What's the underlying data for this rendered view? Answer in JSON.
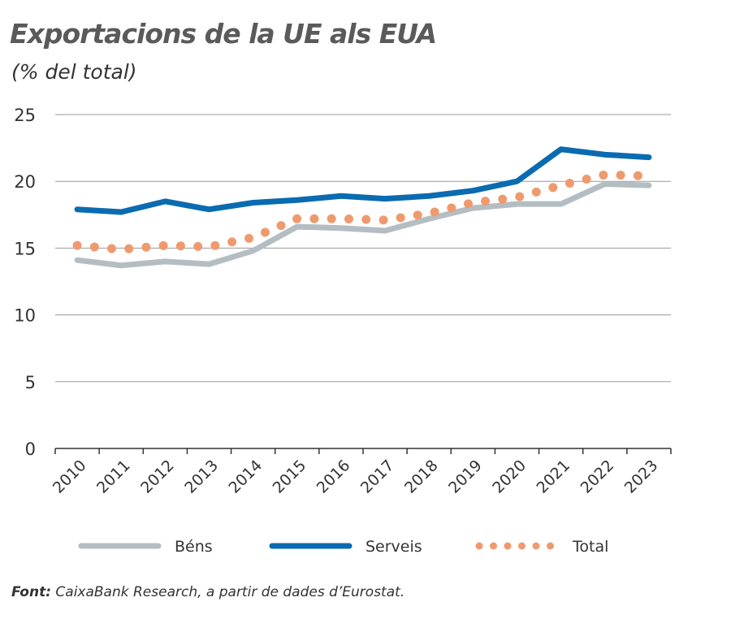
{
  "chart_data": {
    "type": "line",
    "title": "Exportacions de la UE als EUA",
    "subtitle": "(% del total)",
    "categories": [
      "2010",
      "2011",
      "2012",
      "2013",
      "2014",
      "2015",
      "2016",
      "2017",
      "2018",
      "2019",
      "2020",
      "2021",
      "2022",
      "2023"
    ],
    "ylim": [
      0,
      25
    ],
    "yticks": [
      0,
      5,
      10,
      15,
      20,
      25
    ],
    "grid": true,
    "legend": "bottom",
    "series": [
      {
        "name": "Béns",
        "color": "#b4bec2",
        "style": "solid",
        "values": [
          14.1,
          13.7,
          14.0,
          13.8,
          14.8,
          16.6,
          16.5,
          16.3,
          17.2,
          18.0,
          18.3,
          18.3,
          19.8,
          19.7
        ]
      },
      {
        "name": "Serveis",
        "color": "#0a6bb0",
        "style": "solid",
        "values": [
          17.9,
          17.7,
          18.5,
          17.9,
          18.4,
          18.6,
          18.9,
          18.7,
          18.9,
          19.3,
          20.0,
          22.4,
          22.0,
          21.8
        ]
      },
      {
        "name": "Total",
        "color": "#ef9a6e",
        "style": "dotted",
        "values": [
          15.2,
          14.9,
          15.2,
          15.1,
          15.8,
          17.2,
          17.2,
          17.1,
          17.6,
          18.4,
          18.8,
          19.7,
          20.5,
          20.4
        ]
      }
    ],
    "source_label": "Font:",
    "source_text": " CaixaBank Research, a partir de dades d’Eurostat."
  }
}
